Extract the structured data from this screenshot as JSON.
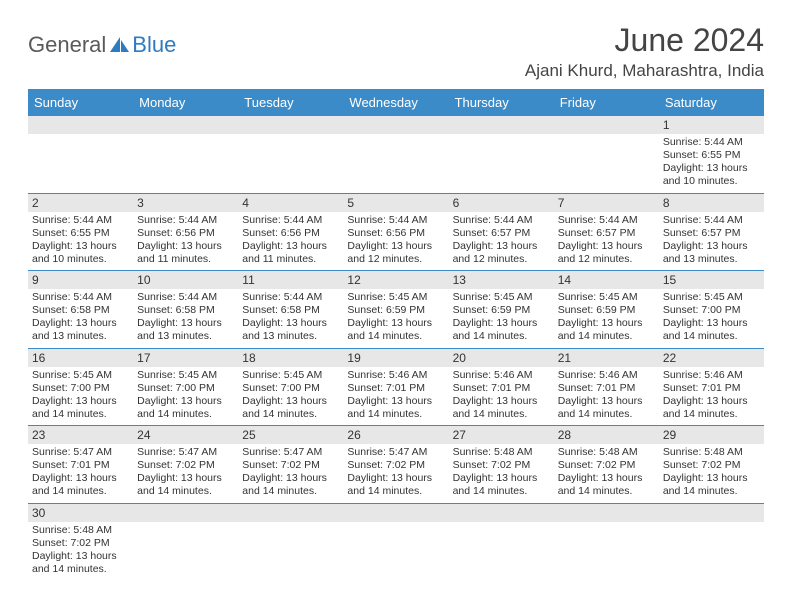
{
  "logo": {
    "part1": "General",
    "part2": "Blue"
  },
  "title": "June 2024",
  "location": "Ajani Khurd, Maharashtra, India",
  "colors": {
    "header_bg": "#3b8bc9",
    "header_text": "#ffffff",
    "daynum_bg": "#e7e7e7",
    "row_border": "#3b8bc9",
    "text": "#333333",
    "logo_gray": "#5a5a5a",
    "logo_blue": "#2f7bbf"
  },
  "day_names": [
    "Sunday",
    "Monday",
    "Tuesday",
    "Wednesday",
    "Thursday",
    "Friday",
    "Saturday"
  ],
  "weeks": [
    [
      null,
      null,
      null,
      null,
      null,
      null,
      {
        "n": "1",
        "sr": "Sunrise: 5:44 AM",
        "ss": "Sunset: 6:55 PM",
        "d1": "Daylight: 13 hours",
        "d2": "and 10 minutes."
      }
    ],
    [
      {
        "n": "2",
        "sr": "Sunrise: 5:44 AM",
        "ss": "Sunset: 6:55 PM",
        "d1": "Daylight: 13 hours",
        "d2": "and 10 minutes."
      },
      {
        "n": "3",
        "sr": "Sunrise: 5:44 AM",
        "ss": "Sunset: 6:56 PM",
        "d1": "Daylight: 13 hours",
        "d2": "and 11 minutes."
      },
      {
        "n": "4",
        "sr": "Sunrise: 5:44 AM",
        "ss": "Sunset: 6:56 PM",
        "d1": "Daylight: 13 hours",
        "d2": "and 11 minutes."
      },
      {
        "n": "5",
        "sr": "Sunrise: 5:44 AM",
        "ss": "Sunset: 6:56 PM",
        "d1": "Daylight: 13 hours",
        "d2": "and 12 minutes."
      },
      {
        "n": "6",
        "sr": "Sunrise: 5:44 AM",
        "ss": "Sunset: 6:57 PM",
        "d1": "Daylight: 13 hours",
        "d2": "and 12 minutes."
      },
      {
        "n": "7",
        "sr": "Sunrise: 5:44 AM",
        "ss": "Sunset: 6:57 PM",
        "d1": "Daylight: 13 hours",
        "d2": "and 12 minutes."
      },
      {
        "n": "8",
        "sr": "Sunrise: 5:44 AM",
        "ss": "Sunset: 6:57 PM",
        "d1": "Daylight: 13 hours",
        "d2": "and 13 minutes."
      }
    ],
    [
      {
        "n": "9",
        "sr": "Sunrise: 5:44 AM",
        "ss": "Sunset: 6:58 PM",
        "d1": "Daylight: 13 hours",
        "d2": "and 13 minutes."
      },
      {
        "n": "10",
        "sr": "Sunrise: 5:44 AM",
        "ss": "Sunset: 6:58 PM",
        "d1": "Daylight: 13 hours",
        "d2": "and 13 minutes."
      },
      {
        "n": "11",
        "sr": "Sunrise: 5:44 AM",
        "ss": "Sunset: 6:58 PM",
        "d1": "Daylight: 13 hours",
        "d2": "and 13 minutes."
      },
      {
        "n": "12",
        "sr": "Sunrise: 5:45 AM",
        "ss": "Sunset: 6:59 PM",
        "d1": "Daylight: 13 hours",
        "d2": "and 14 minutes."
      },
      {
        "n": "13",
        "sr": "Sunrise: 5:45 AM",
        "ss": "Sunset: 6:59 PM",
        "d1": "Daylight: 13 hours",
        "d2": "and 14 minutes."
      },
      {
        "n": "14",
        "sr": "Sunrise: 5:45 AM",
        "ss": "Sunset: 6:59 PM",
        "d1": "Daylight: 13 hours",
        "d2": "and 14 minutes."
      },
      {
        "n": "15",
        "sr": "Sunrise: 5:45 AM",
        "ss": "Sunset: 7:00 PM",
        "d1": "Daylight: 13 hours",
        "d2": "and 14 minutes."
      }
    ],
    [
      {
        "n": "16",
        "sr": "Sunrise: 5:45 AM",
        "ss": "Sunset: 7:00 PM",
        "d1": "Daylight: 13 hours",
        "d2": "and 14 minutes."
      },
      {
        "n": "17",
        "sr": "Sunrise: 5:45 AM",
        "ss": "Sunset: 7:00 PM",
        "d1": "Daylight: 13 hours",
        "d2": "and 14 minutes."
      },
      {
        "n": "18",
        "sr": "Sunrise: 5:45 AM",
        "ss": "Sunset: 7:00 PM",
        "d1": "Daylight: 13 hours",
        "d2": "and 14 minutes."
      },
      {
        "n": "19",
        "sr": "Sunrise: 5:46 AM",
        "ss": "Sunset: 7:01 PM",
        "d1": "Daylight: 13 hours",
        "d2": "and 14 minutes."
      },
      {
        "n": "20",
        "sr": "Sunrise: 5:46 AM",
        "ss": "Sunset: 7:01 PM",
        "d1": "Daylight: 13 hours",
        "d2": "and 14 minutes."
      },
      {
        "n": "21",
        "sr": "Sunrise: 5:46 AM",
        "ss": "Sunset: 7:01 PM",
        "d1": "Daylight: 13 hours",
        "d2": "and 14 minutes."
      },
      {
        "n": "22",
        "sr": "Sunrise: 5:46 AM",
        "ss": "Sunset: 7:01 PM",
        "d1": "Daylight: 13 hours",
        "d2": "and 14 minutes."
      }
    ],
    [
      {
        "n": "23",
        "sr": "Sunrise: 5:47 AM",
        "ss": "Sunset: 7:01 PM",
        "d1": "Daylight: 13 hours",
        "d2": "and 14 minutes."
      },
      {
        "n": "24",
        "sr": "Sunrise: 5:47 AM",
        "ss": "Sunset: 7:02 PM",
        "d1": "Daylight: 13 hours",
        "d2": "and 14 minutes."
      },
      {
        "n": "25",
        "sr": "Sunrise: 5:47 AM",
        "ss": "Sunset: 7:02 PM",
        "d1": "Daylight: 13 hours",
        "d2": "and 14 minutes."
      },
      {
        "n": "26",
        "sr": "Sunrise: 5:47 AM",
        "ss": "Sunset: 7:02 PM",
        "d1": "Daylight: 13 hours",
        "d2": "and 14 minutes."
      },
      {
        "n": "27",
        "sr": "Sunrise: 5:48 AM",
        "ss": "Sunset: 7:02 PM",
        "d1": "Daylight: 13 hours",
        "d2": "and 14 minutes."
      },
      {
        "n": "28",
        "sr": "Sunrise: 5:48 AM",
        "ss": "Sunset: 7:02 PM",
        "d1": "Daylight: 13 hours",
        "d2": "and 14 minutes."
      },
      {
        "n": "29",
        "sr": "Sunrise: 5:48 AM",
        "ss": "Sunset: 7:02 PM",
        "d1": "Daylight: 13 hours",
        "d2": "and 14 minutes."
      }
    ],
    [
      {
        "n": "30",
        "sr": "Sunrise: 5:48 AM",
        "ss": "Sunset: 7:02 PM",
        "d1": "Daylight: 13 hours",
        "d2": "and 14 minutes."
      },
      null,
      null,
      null,
      null,
      null,
      null
    ]
  ]
}
